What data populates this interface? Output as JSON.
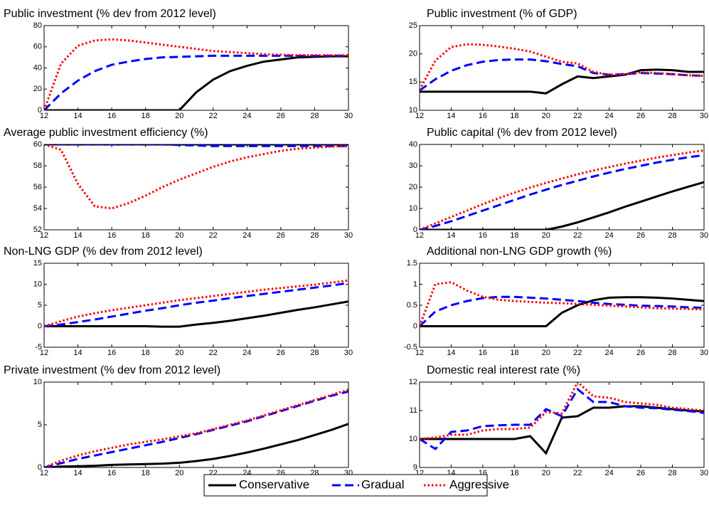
{
  "chart_data": [
    {
      "type": "line",
      "title": "Public investment (% dev from 2012 level)",
      "x": [
        12,
        13,
        14,
        15,
        16,
        17,
        18,
        19,
        20,
        21,
        22,
        23,
        24,
        25,
        26,
        27,
        28,
        29,
        30
      ],
      "xlim": [
        12,
        30
      ],
      "xticks": [
        12,
        14,
        16,
        18,
        20,
        22,
        24,
        26,
        28,
        30
      ],
      "ylim": [
        0,
        80
      ],
      "yticks": [
        0,
        20,
        40,
        60,
        80
      ],
      "series": [
        {
          "name": "Conservative",
          "color": "#000000",
          "dash": "solid",
          "values": [
            0,
            0,
            0,
            0,
            0,
            0,
            0,
            0,
            0,
            17,
            29,
            37,
            42,
            46,
            48,
            50,
            50.5,
            51,
            51
          ]
        },
        {
          "name": "Gradual",
          "color": "#0000ff",
          "dash": "dashed",
          "values": [
            0,
            16,
            28,
            37,
            43,
            46,
            48.5,
            50,
            50.5,
            51,
            51.5,
            51.5,
            51.5,
            51.5,
            51.5,
            51.5,
            51.5,
            51.5,
            51.5
          ]
        },
        {
          "name": "Aggressive",
          "color": "#ff0000",
          "dash": "dotted",
          "values": [
            0,
            44,
            61,
            66,
            67,
            66,
            64,
            62,
            60,
            58,
            56,
            55,
            54,
            53,
            52.5,
            52,
            52,
            52,
            52
          ]
        }
      ]
    },
    {
      "type": "line",
      "title": "Public investment (% of GDP)",
      "x": [
        12,
        13,
        14,
        15,
        16,
        17,
        18,
        19,
        20,
        21,
        22,
        23,
        24,
        25,
        26,
        27,
        28,
        29,
        30
      ],
      "xlim": [
        12,
        30
      ],
      "xticks": [
        12,
        14,
        16,
        18,
        20,
        22,
        24,
        26,
        28,
        30
      ],
      "ylim": [
        10,
        25
      ],
      "yticks": [
        10,
        15,
        20,
        25
      ],
      "series": [
        {
          "name": "Conservative",
          "color": "#000000",
          "dash": "solid",
          "values": [
            13.3,
            13.3,
            13.3,
            13.3,
            13.3,
            13.3,
            13.3,
            13.3,
            13.0,
            14.6,
            16.0,
            15.7,
            16.0,
            16.3,
            17.1,
            17.2,
            17.1,
            16.8,
            16.8
          ]
        },
        {
          "name": "Gradual",
          "color": "#0000ff",
          "dash": "dashed",
          "values": [
            13.5,
            15.5,
            17.0,
            18.0,
            18.6,
            18.9,
            19.0,
            19.0,
            18.7,
            18.2,
            17.8,
            16.6,
            16.3,
            16.4,
            16.6,
            16.5,
            16.4,
            16.2,
            16.1
          ]
        },
        {
          "name": "Aggressive",
          "color": "#ff0000",
          "dash": "dotted",
          "values": [
            13.6,
            18.8,
            21.2,
            21.7,
            21.6,
            21.3,
            20.9,
            20.4,
            19.5,
            18.6,
            18.3,
            16.8,
            16.3,
            16.4,
            16.7,
            16.6,
            16.4,
            16.2,
            16.1
          ]
        }
      ]
    },
    {
      "type": "line",
      "title": "Average public investment efficiency (%)",
      "x": [
        12,
        13,
        14,
        15,
        16,
        17,
        18,
        19,
        20,
        21,
        22,
        23,
        24,
        25,
        26,
        27,
        28,
        29,
        30
      ],
      "xlim": [
        12,
        30
      ],
      "xticks": [
        12,
        14,
        16,
        18,
        20,
        22,
        24,
        26,
        28,
        30
      ],
      "ylim": [
        52,
        60
      ],
      "yticks": [
        52,
        54,
        56,
        58,
        60
      ],
      "series": [
        {
          "name": "Conservative",
          "color": "#000000",
          "dash": "solid",
          "values": [
            60,
            60,
            60,
            60,
            60,
            60,
            60,
            60,
            60,
            60,
            60,
            60,
            60,
            60,
            60,
            60,
            60,
            60,
            60
          ]
        },
        {
          "name": "Gradual",
          "color": "#0000ff",
          "dash": "dashed",
          "values": [
            60,
            60,
            60,
            60,
            60,
            60,
            60,
            60,
            59.95,
            59.9,
            59.85,
            59.85,
            59.85,
            59.85,
            59.85,
            59.85,
            59.85,
            59.85,
            59.85
          ]
        },
        {
          "name": "Aggressive",
          "color": "#ff0000",
          "dash": "dotted",
          "values": [
            60,
            59.5,
            56.3,
            54.2,
            54.0,
            54.5,
            55.2,
            56.0,
            56.7,
            57.3,
            57.9,
            58.4,
            58.8,
            59.1,
            59.4,
            59.6,
            59.7,
            59.8,
            59.85
          ]
        }
      ]
    },
    {
      "type": "line",
      "title": "Public capital (% dev from 2012 level)",
      "x": [
        12,
        13,
        14,
        15,
        16,
        17,
        18,
        19,
        20,
        21,
        22,
        23,
        24,
        25,
        26,
        27,
        28,
        29,
        30
      ],
      "xlim": [
        12,
        30
      ],
      "xticks": [
        12,
        14,
        16,
        18,
        20,
        22,
        24,
        26,
        28,
        30
      ],
      "ylim": [
        0,
        40
      ],
      "yticks": [
        0,
        10,
        20,
        30,
        40
      ],
      "series": [
        {
          "name": "Conservative",
          "color": "#000000",
          "dash": "solid",
          "values": [
            0,
            0,
            0,
            0,
            0,
            0,
            0,
            0,
            0,
            1.5,
            3.5,
            5.8,
            8.2,
            10.8,
            13.2,
            15.6,
            18.0,
            20.2,
            22.3
          ]
        },
        {
          "name": "Gradual",
          "color": "#0000ff",
          "dash": "dashed",
          "values": [
            0,
            1.8,
            4,
            6.5,
            9,
            11.5,
            14,
            16.5,
            18.8,
            21,
            23,
            25,
            26.8,
            28.5,
            30,
            31.5,
            32.8,
            34,
            35
          ]
        },
        {
          "name": "Aggressive",
          "color": "#ff0000",
          "dash": "dotted",
          "values": [
            0,
            3,
            6,
            9,
            12,
            14.8,
            17.4,
            19.8,
            22,
            24,
            26,
            27.8,
            29.4,
            31,
            32.4,
            33.8,
            35,
            36.2,
            37.2
          ]
        }
      ]
    },
    {
      "type": "line",
      "title": "Non-LNG GDP (% dev from 2012 level)",
      "x": [
        12,
        13,
        14,
        15,
        16,
        17,
        18,
        19,
        20,
        21,
        22,
        23,
        24,
        25,
        26,
        27,
        28,
        29,
        30
      ],
      "xlim": [
        12,
        30
      ],
      "xticks": [
        12,
        14,
        16,
        18,
        20,
        22,
        24,
        26,
        28,
        30
      ],
      "ylim": [
        -5,
        15
      ],
      "yticks": [
        -5,
        0,
        5,
        10,
        15
      ],
      "series": [
        {
          "name": "Conservative",
          "color": "#000000",
          "dash": "solid",
          "values": [
            0,
            0,
            0,
            0,
            0,
            0,
            0,
            -0.1,
            -0.1,
            0.4,
            0.8,
            1.3,
            1.9,
            2.5,
            3.2,
            3.9,
            4.5,
            5.2,
            5.9
          ]
        },
        {
          "name": "Gradual",
          "color": "#0000ff",
          "dash": "dashed",
          "values": [
            0,
            0.4,
            1,
            1.6,
            2.3,
            3,
            3.7,
            4.3,
            5,
            5.6,
            6.1,
            6.7,
            7.2,
            7.7,
            8.2,
            8.7,
            9.2,
            9.7,
            10.3
          ]
        },
        {
          "name": "Aggressive",
          "color": "#ff0000",
          "dash": "dotted",
          "values": [
            0,
            1.2,
            2.3,
            3.1,
            3.8,
            4.4,
            5,
            5.6,
            6.2,
            6.7,
            7.2,
            7.7,
            8.2,
            8.7,
            9.1,
            9.5,
            9.9,
            10.4,
            10.9
          ]
        }
      ]
    },
    {
      "type": "line",
      "title": "Additional non-LNG GDP growth (%)",
      "x": [
        12,
        13,
        14,
        15,
        16,
        17,
        18,
        19,
        20,
        21,
        22,
        23,
        24,
        25,
        26,
        27,
        28,
        29,
        30
      ],
      "xlim": [
        12,
        30
      ],
      "xticks": [
        12,
        14,
        16,
        18,
        20,
        22,
        24,
        26,
        28,
        30
      ],
      "ylim": [
        -0.5,
        1.5
      ],
      "yticks": [
        -0.5,
        0,
        0.5,
        1,
        1.5
      ],
      "series": [
        {
          "name": "Conservative",
          "color": "#000000",
          "dash": "solid",
          "values": [
            0,
            0,
            0,
            0,
            0,
            0,
            0,
            0,
            0,
            0.32,
            0.5,
            0.62,
            0.68,
            0.69,
            0.69,
            0.68,
            0.66,
            0.63,
            0.6
          ]
        },
        {
          "name": "Gradual",
          "color": "#0000ff",
          "dash": "dashed",
          "values": [
            0,
            0.35,
            0.5,
            0.6,
            0.67,
            0.7,
            0.7,
            0.68,
            0.66,
            0.63,
            0.6,
            0.56,
            0.53,
            0.51,
            0.49,
            0.48,
            0.47,
            0.45,
            0.44
          ]
        },
        {
          "name": "Aggressive",
          "color": "#ff0000",
          "dash": "dotted",
          "values": [
            0,
            1.0,
            1.05,
            0.85,
            0.7,
            0.63,
            0.6,
            0.58,
            0.56,
            0.55,
            0.53,
            0.51,
            0.49,
            0.47,
            0.45,
            0.43,
            0.42,
            0.41,
            0.4
          ]
        }
      ]
    },
    {
      "type": "line",
      "title": "Private investment (% dev from 2012 level)",
      "x": [
        12,
        13,
        14,
        15,
        16,
        17,
        18,
        19,
        20,
        21,
        22,
        23,
        24,
        25,
        26,
        27,
        28,
        29,
        30
      ],
      "xlim": [
        12,
        30
      ],
      "xticks": [
        12,
        14,
        16,
        18,
        20,
        22,
        24,
        26,
        28,
        30
      ],
      "ylim": [
        0,
        10
      ],
      "yticks": [
        0,
        5,
        10
      ],
      "series": [
        {
          "name": "Conservative",
          "color": "#000000",
          "dash": "solid",
          "values": [
            0,
            0.1,
            0.15,
            0.2,
            0.3,
            0.35,
            0.4,
            0.45,
            0.55,
            0.75,
            1.0,
            1.35,
            1.75,
            2.2,
            2.7,
            3.2,
            3.8,
            4.4,
            5.1
          ]
        },
        {
          "name": "Gradual",
          "color": "#0000ff",
          "dash": "dashed",
          "values": [
            0,
            0.5,
            1.0,
            1.4,
            1.8,
            2.2,
            2.6,
            3.0,
            3.45,
            3.9,
            4.4,
            4.9,
            5.4,
            6.0,
            6.6,
            7.2,
            7.8,
            8.4,
            8.9
          ]
        },
        {
          "name": "Aggressive",
          "color": "#ff0000",
          "dash": "dotted",
          "values": [
            0,
            0.8,
            1.4,
            1.9,
            2.3,
            2.7,
            3.0,
            3.3,
            3.65,
            4.0,
            4.5,
            5.0,
            5.5,
            6.1,
            6.7,
            7.3,
            7.9,
            8.5,
            9.1
          ]
        }
      ]
    },
    {
      "type": "line",
      "title": "Domestic real interest rate (%)",
      "x": [
        12,
        13,
        14,
        15,
        16,
        17,
        18,
        19,
        20,
        21,
        22,
        23,
        24,
        25,
        26,
        27,
        28,
        29,
        30
      ],
      "xlim": [
        12,
        30
      ],
      "xticks": [
        12,
        14,
        16,
        18,
        20,
        22,
        24,
        26,
        28,
        30
      ],
      "ylim": [
        9,
        12
      ],
      "yticks": [
        9,
        10,
        11,
        12
      ],
      "series": [
        {
          "name": "Conservative",
          "color": "#000000",
          "dash": "solid",
          "values": [
            10,
            10,
            10,
            10,
            10,
            10,
            10,
            10.1,
            9.5,
            10.75,
            10.8,
            11.1,
            11.1,
            11.15,
            11.15,
            11.1,
            11.05,
            11.0,
            10.97
          ]
        },
        {
          "name": "Gradual",
          "color": "#0000ff",
          "dash": "dashed",
          "values": [
            10,
            9.65,
            10.25,
            10.3,
            10.45,
            10.48,
            10.5,
            10.5,
            11.05,
            10.8,
            11.75,
            11.3,
            11.3,
            11.15,
            11.1,
            11.08,
            11.03,
            10.98,
            10.92
          ]
        },
        {
          "name": "Aggressive",
          "color": "#ff0000",
          "dash": "dotted",
          "values": [
            10,
            10.05,
            10.15,
            10.15,
            10.3,
            10.35,
            10.35,
            10.4,
            10.95,
            10.9,
            12.0,
            11.5,
            11.45,
            11.3,
            11.25,
            11.2,
            11.1,
            11.05,
            11.0
          ]
        }
      ]
    }
  ]
}
